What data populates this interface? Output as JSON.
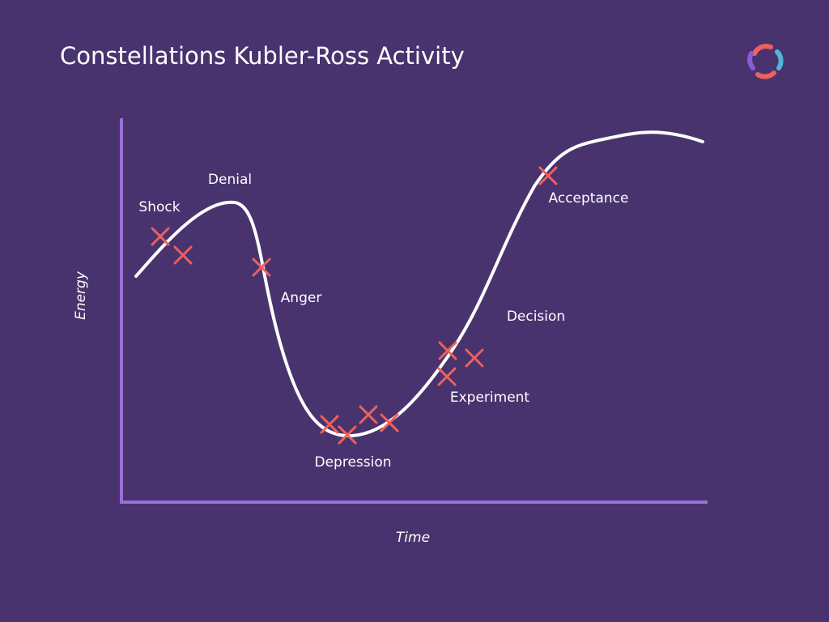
{
  "header": {
    "title": "Constellations Kubler-Ross Activity"
  },
  "axes": {
    "y": "Energy",
    "x": "Time"
  },
  "stages": [
    {
      "label": "Shock"
    },
    {
      "label": "Denial"
    },
    {
      "label": "Anger"
    },
    {
      "label": "Depression"
    },
    {
      "label": "Experiment"
    },
    {
      "label": "Decision"
    },
    {
      "label": "Acceptance"
    }
  ]
}
